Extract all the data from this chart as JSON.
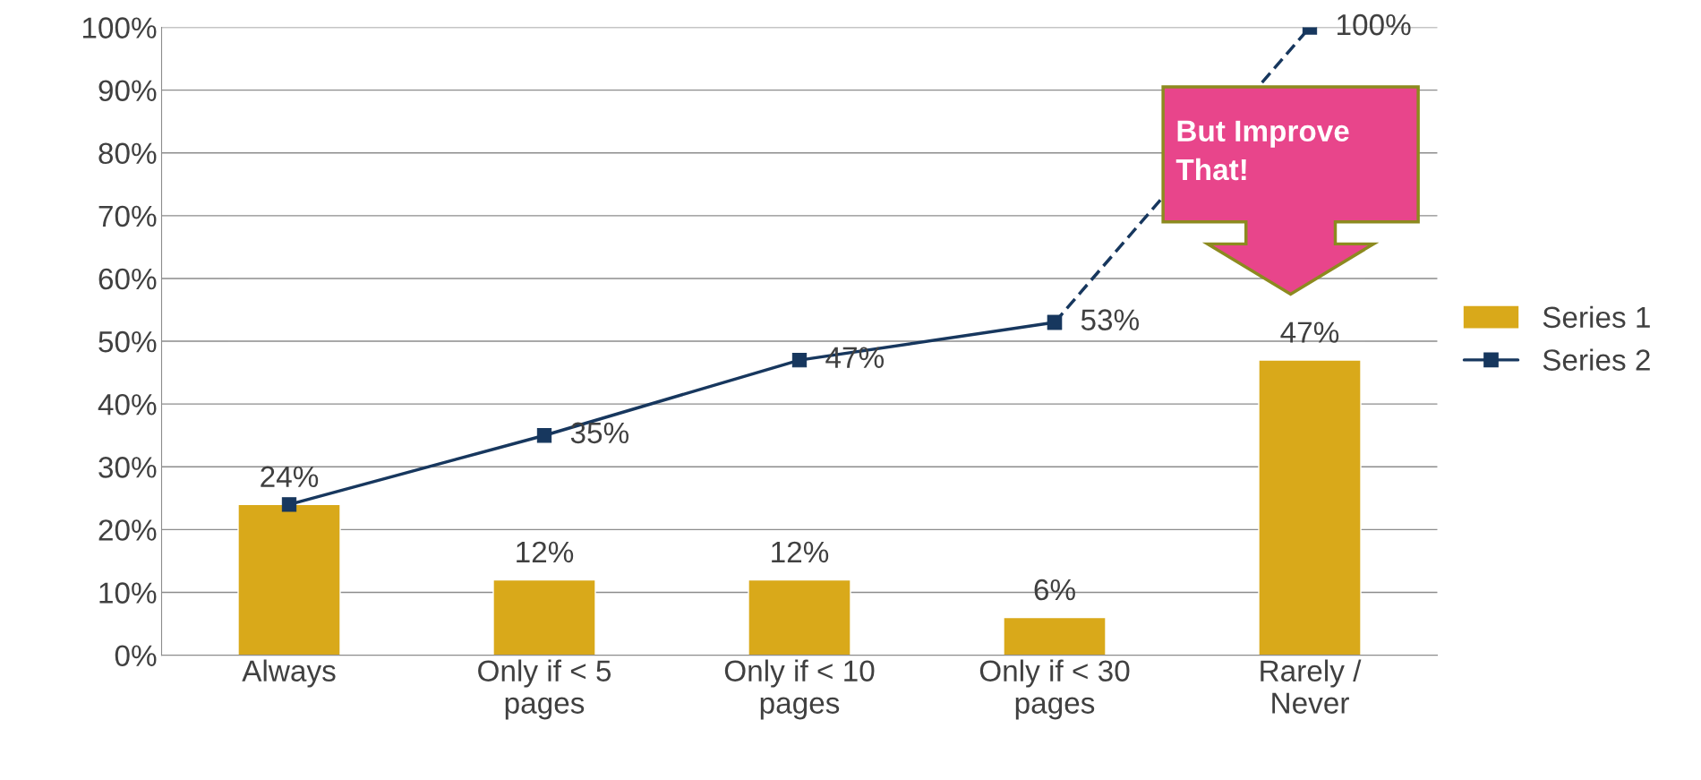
{
  "chart_data": {
    "type": "bar",
    "categories": [
      "Always",
      "Only if < 5\npages",
      "Only if < 10\npages",
      "Only if < 30\npages",
      "Rarely /\nNever"
    ],
    "series": [
      {
        "name": "Series 1",
        "color": "#d9a91a",
        "values": [
          24,
          12,
          12,
          6,
          47
        ],
        "value_labels": [
          "24%",
          "12%",
          "12%",
          "6%",
          "47%"
        ]
      },
      {
        "name": "Series 2",
        "type": "line",
        "color": "#17375e",
        "marker": "square",
        "line_style": "solid",
        "values": [
          24,
          35,
          47,
          53,
          null
        ],
        "value_labels": [
          null,
          "35%",
          "47%",
          "53%",
          null
        ]
      },
      {
        "type": "line",
        "color": "#17375e",
        "marker": "square",
        "line_style": "dashed",
        "values": [
          null,
          null,
          null,
          53,
          100
        ],
        "value_labels": [
          null,
          null,
          null,
          null,
          "100%"
        ]
      }
    ],
    "ylim": [
      0,
      100
    ],
    "yticks": [
      {
        "value": 0,
        "label": "0%"
      },
      {
        "value": 10,
        "label": "10%"
      },
      {
        "value": 20,
        "label": "20%"
      },
      {
        "value": 30,
        "label": "30%"
      },
      {
        "value": 40,
        "label": "40%"
      },
      {
        "value": 50,
        "label": "50%"
      },
      {
        "value": 60,
        "label": "60%"
      },
      {
        "value": 70,
        "label": "70%"
      },
      {
        "value": 80,
        "label": "80%"
      },
      {
        "value": 90,
        "label": "90%"
      },
      {
        "value": 100,
        "label": "100%"
      }
    ],
    "grid": "y",
    "legend": "right",
    "annotations": [
      "But Improve\nThat!"
    ]
  }
}
